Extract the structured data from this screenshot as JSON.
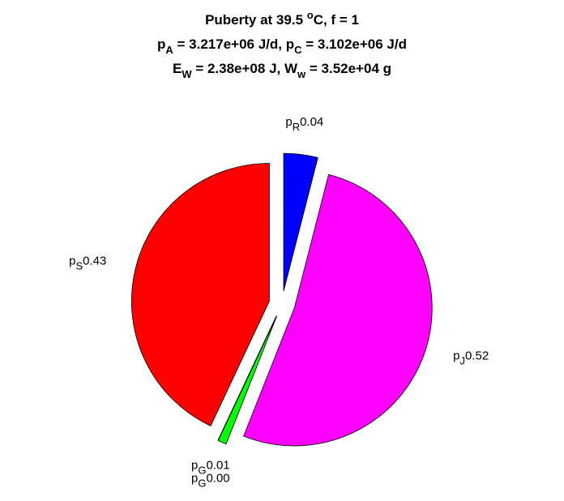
{
  "chart_data": {
    "type": "pie",
    "title": [
      [
        "Puberty at 39.5 ",
        {
          "sup": "o"
        },
        "C, f = 1"
      ],
      [
        "p",
        {
          "sub": "A"
        },
        " = 3.217e+06 J/d,  p",
        {
          "sub": "C"
        },
        " = 3.102e+06 J/d"
      ],
      [
        "E",
        {
          "sub": "W"
        },
        " = 2.38e+08 J, W",
        {
          "sub": "w"
        },
        " = 3.52e+04 g"
      ]
    ],
    "categories": [
      [
        "p",
        {
          "sub": "R"
        }
      ],
      [
        "p",
        {
          "sub": "J"
        }
      ],
      [
        "p",
        {
          "sub": "G"
        }
      ],
      [
        "p",
        {
          "sub": "G"
        }
      ],
      [
        "p",
        {
          "sub": "S"
        }
      ]
    ],
    "values": [
      0.04,
      0.52,
      0.01,
      0.0,
      0.43
    ],
    "value_labels": [
      "0.04",
      "0.52",
      "0.01",
      "0.00",
      "0.43"
    ],
    "colors": [
      "#0000ff",
      "#ff00ff",
      "#00ff00",
      "#00ff00",
      "#ff0000"
    ],
    "exploded": true
  }
}
